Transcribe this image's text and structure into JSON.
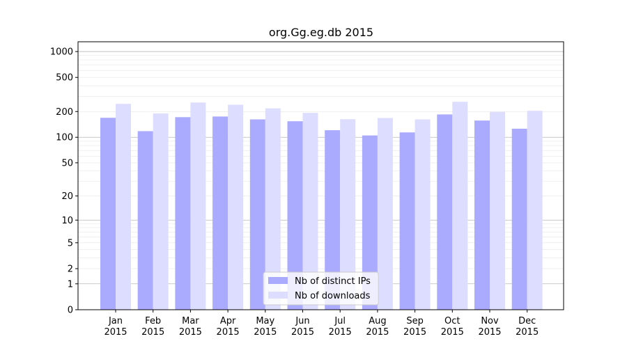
{
  "chart_data": {
    "type": "bar",
    "title": "org.Gg.eg.db 2015",
    "xlabel": "",
    "ylabel": "",
    "y_scale": "log(1+y)",
    "ylim": [
      0,
      1300
    ],
    "y_ticks": [
      0,
      1,
      2,
      5,
      10,
      20,
      50,
      100,
      200,
      500,
      1000
    ],
    "grid": true,
    "legend_position": "bottom-center",
    "categories": [
      "Jan\n2015",
      "Feb\n2015",
      "Mar\n2015",
      "Apr\n2015",
      "May\n2015",
      "Jun\n2015",
      "Jul\n2015",
      "Aug\n2015",
      "Sep\n2015",
      "Oct\n2015",
      "Nov\n2015",
      "Dec\n2015"
    ],
    "series": [
      {
        "name": "Nb of distinct IPs",
        "color": "#aaaaff",
        "values": [
          169,
          118,
          172,
          175,
          162,
          154,
          121,
          105,
          114,
          185,
          157,
          126
        ]
      },
      {
        "name": "Nb of downloads",
        "color": "#ddddff",
        "values": [
          246,
          190,
          255,
          240,
          218,
          193,
          163,
          168,
          162,
          260,
          198,
          204
        ]
      }
    ]
  }
}
